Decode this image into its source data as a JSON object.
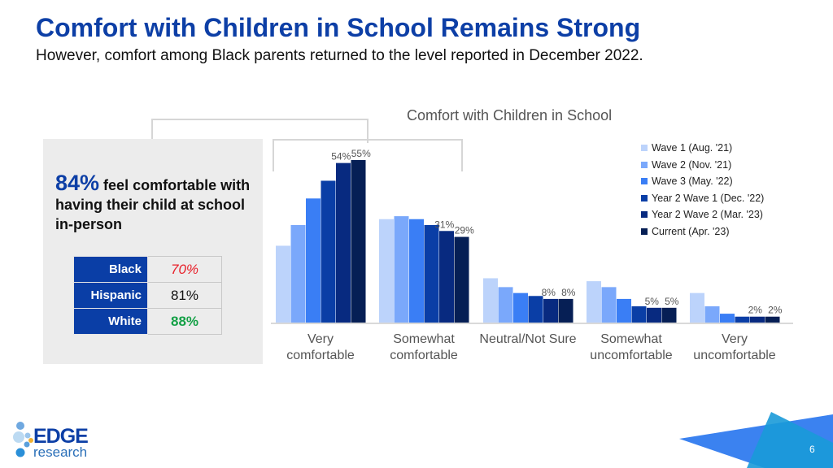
{
  "header": {
    "title": "Comfort with Children in School Remains Strong",
    "subtitle": "However, comfort among Black parents returned to the level reported in December 2022."
  },
  "callout": {
    "stat": "84%",
    "text": " feel comfortable with having their child at school in-person",
    "rows": [
      {
        "label": "Black",
        "value": "70%",
        "color": "#e8202a"
      },
      {
        "label": "Hispanic",
        "value": "81%",
        "color": "#111111"
      },
      {
        "label": "White",
        "value": "88%",
        "color": "#14a046"
      }
    ]
  },
  "chart_data": {
    "type": "bar",
    "title": "Comfort with Children in School",
    "categories": [
      "Very comfortable",
      "Somewhat comfortable",
      "Neutral/Not Sure",
      "Somewhat uncomfortable",
      "Very uncomfortable"
    ],
    "ylim": [
      0,
      60
    ],
    "grid": false,
    "legend": "top-right",
    "series": [
      {
        "name": "Wave 1 (Aug. '21)",
        "color": "#bcd3fb",
        "values": [
          26,
          35,
          15,
          14,
          10
        ]
      },
      {
        "name": "Wave 2 (Nov. '21)",
        "color": "#7aa8fb",
        "values": [
          33,
          36,
          12,
          12,
          5.5
        ]
      },
      {
        "name": "Wave 3 (May. '22)",
        "color": "#3a7ef5",
        "values": [
          42,
          35,
          10,
          8,
          3
        ]
      },
      {
        "name": "Year 2 Wave 1 (Dec. '22)",
        "color": "#0a3ea6",
        "values": [
          48,
          33,
          9,
          5.5,
          2
        ]
      },
      {
        "name": "Year 2 Wave 2 (Mar. '23)",
        "color": "#082a80",
        "values": [
          54,
          31,
          8,
          5,
          2
        ]
      },
      {
        "name": "Current (Apr. '23)",
        "color": "#061f55",
        "values": [
          55,
          29,
          8,
          5,
          2
        ]
      }
    ],
    "data_labels": [
      [
        "",
        "",
        "",
        "",
        "54%",
        "55%"
      ],
      [
        "",
        "",
        "",
        "",
        "31%",
        "29%"
      ],
      [
        "",
        "",
        "",
        "",
        "8%",
        "8%"
      ],
      [
        "",
        "",
        "",
        "",
        "5%",
        "5%"
      ],
      [
        "",
        "",
        "",
        "",
        "2%",
        "2%"
      ]
    ]
  },
  "footer": {
    "logo": "EDGE research",
    "page": "6"
  }
}
